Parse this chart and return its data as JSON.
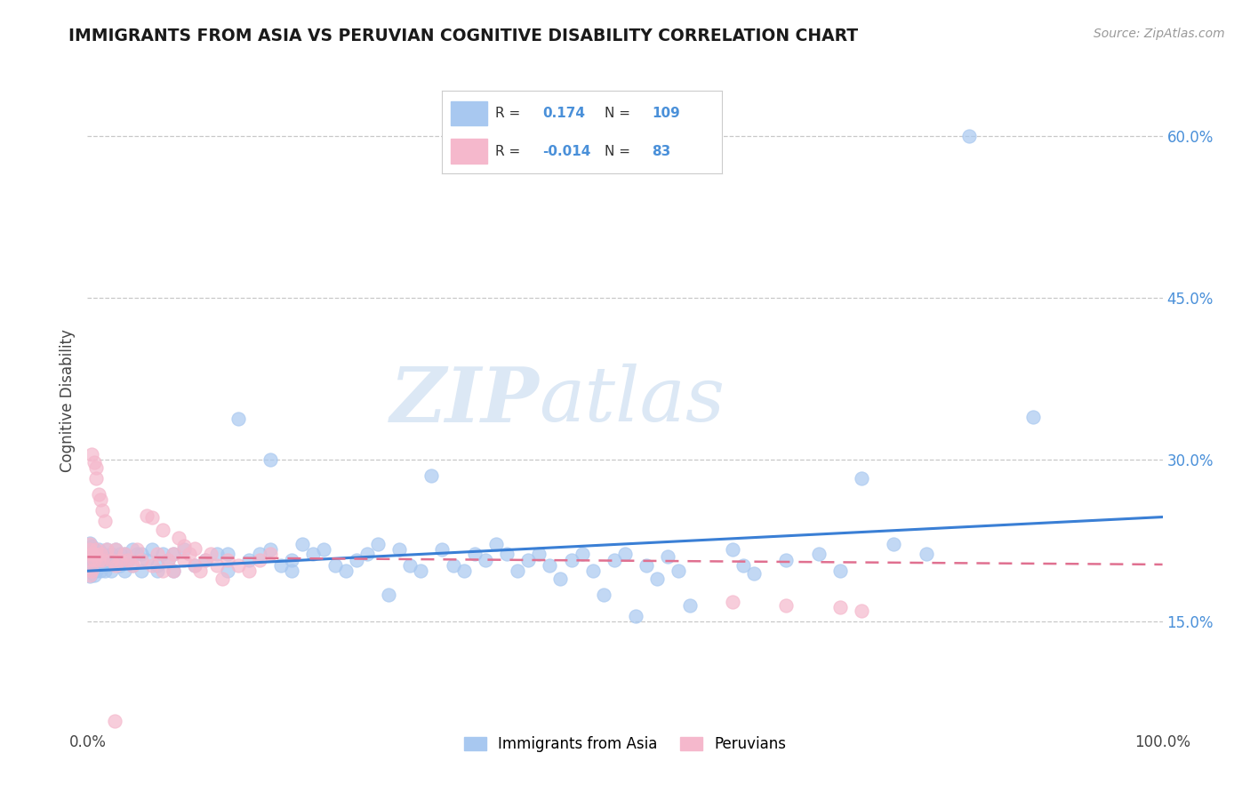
{
  "title": "IMMIGRANTS FROM ASIA VS PERUVIAN COGNITIVE DISABILITY CORRELATION CHART",
  "source": "Source: ZipAtlas.com",
  "ylabel": "Cognitive Disability",
  "y_tick_labels": [
    "15.0%",
    "30.0%",
    "45.0%",
    "60.0%"
  ],
  "y_tick_values": [
    0.15,
    0.3,
    0.45,
    0.6
  ],
  "x_range": [
    0.0,
    1.0
  ],
  "y_range": [
    0.05,
    0.66
  ],
  "color_blue": "#a8c8f0",
  "color_pink": "#f5b8cc",
  "line_blue": "#3a7fd5",
  "line_pink": "#e07090",
  "watermark_zip": "ZIP",
  "watermark_atlas": "atlas",
  "blue_scatter": [
    [
      0.002,
      0.205
    ],
    [
      0.002,
      0.218
    ],
    [
      0.002,
      0.223
    ],
    [
      0.002,
      0.192
    ],
    [
      0.002,
      0.21
    ],
    [
      0.004,
      0.213
    ],
    [
      0.004,
      0.197
    ],
    [
      0.004,
      0.207
    ],
    [
      0.004,
      0.22
    ],
    [
      0.006,
      0.217
    ],
    [
      0.006,
      0.193
    ],
    [
      0.006,
      0.207
    ],
    [
      0.006,
      0.212
    ],
    [
      0.008,
      0.202
    ],
    [
      0.008,
      0.212
    ],
    [
      0.008,
      0.197
    ],
    [
      0.01,
      0.207
    ],
    [
      0.01,
      0.217
    ],
    [
      0.01,
      0.202
    ],
    [
      0.012,
      0.213
    ],
    [
      0.012,
      0.197
    ],
    [
      0.012,
      0.207
    ],
    [
      0.014,
      0.213
    ],
    [
      0.014,
      0.202
    ],
    [
      0.016,
      0.197
    ],
    [
      0.016,
      0.207
    ],
    [
      0.018,
      0.217
    ],
    [
      0.018,
      0.202
    ],
    [
      0.022,
      0.213
    ],
    [
      0.022,
      0.197
    ],
    [
      0.026,
      0.207
    ],
    [
      0.026,
      0.217
    ],
    [
      0.03,
      0.202
    ],
    [
      0.03,
      0.213
    ],
    [
      0.034,
      0.197
    ],
    [
      0.034,
      0.213
    ],
    [
      0.038,
      0.207
    ],
    [
      0.042,
      0.217
    ],
    [
      0.042,
      0.202
    ],
    [
      0.046,
      0.213
    ],
    [
      0.05,
      0.197
    ],
    [
      0.05,
      0.213
    ],
    [
      0.055,
      0.207
    ],
    [
      0.06,
      0.217
    ],
    [
      0.065,
      0.202
    ],
    [
      0.065,
      0.197
    ],
    [
      0.07,
      0.213
    ],
    [
      0.075,
      0.207
    ],
    [
      0.08,
      0.213
    ],
    [
      0.08,
      0.197
    ],
    [
      0.09,
      0.217
    ],
    [
      0.1,
      0.202
    ],
    [
      0.11,
      0.207
    ],
    [
      0.12,
      0.213
    ],
    [
      0.13,
      0.197
    ],
    [
      0.13,
      0.213
    ],
    [
      0.14,
      0.338
    ],
    [
      0.15,
      0.207
    ],
    [
      0.16,
      0.213
    ],
    [
      0.17,
      0.3
    ],
    [
      0.17,
      0.217
    ],
    [
      0.18,
      0.202
    ],
    [
      0.19,
      0.207
    ],
    [
      0.19,
      0.197
    ],
    [
      0.2,
      0.222
    ],
    [
      0.21,
      0.213
    ],
    [
      0.22,
      0.217
    ],
    [
      0.23,
      0.202
    ],
    [
      0.24,
      0.197
    ],
    [
      0.25,
      0.207
    ],
    [
      0.26,
      0.213
    ],
    [
      0.27,
      0.222
    ],
    [
      0.28,
      0.175
    ],
    [
      0.29,
      0.217
    ],
    [
      0.3,
      0.202
    ],
    [
      0.31,
      0.197
    ],
    [
      0.32,
      0.285
    ],
    [
      0.33,
      0.217
    ],
    [
      0.34,
      0.202
    ],
    [
      0.35,
      0.197
    ],
    [
      0.36,
      0.213
    ],
    [
      0.37,
      0.207
    ],
    [
      0.38,
      0.222
    ],
    [
      0.39,
      0.213
    ],
    [
      0.4,
      0.197
    ],
    [
      0.41,
      0.207
    ],
    [
      0.42,
      0.213
    ],
    [
      0.43,
      0.202
    ],
    [
      0.44,
      0.19
    ],
    [
      0.45,
      0.207
    ],
    [
      0.46,
      0.213
    ],
    [
      0.47,
      0.197
    ],
    [
      0.48,
      0.175
    ],
    [
      0.49,
      0.207
    ],
    [
      0.5,
      0.213
    ],
    [
      0.51,
      0.155
    ],
    [
      0.52,
      0.202
    ],
    [
      0.53,
      0.19
    ],
    [
      0.54,
      0.21
    ],
    [
      0.55,
      0.197
    ],
    [
      0.56,
      0.165
    ],
    [
      0.6,
      0.217
    ],
    [
      0.61,
      0.202
    ],
    [
      0.62,
      0.195
    ],
    [
      0.65,
      0.207
    ],
    [
      0.68,
      0.213
    ],
    [
      0.7,
      0.197
    ],
    [
      0.72,
      0.283
    ],
    [
      0.75,
      0.222
    ],
    [
      0.78,
      0.213
    ],
    [
      0.82,
      0.6
    ],
    [
      0.88,
      0.34
    ]
  ],
  "pink_scatter": [
    [
      0.002,
      0.217
    ],
    [
      0.002,
      0.222
    ],
    [
      0.002,
      0.207
    ],
    [
      0.002,
      0.193
    ],
    [
      0.004,
      0.305
    ],
    [
      0.004,
      0.213
    ],
    [
      0.004,
      0.197
    ],
    [
      0.006,
      0.298
    ],
    [
      0.006,
      0.213
    ],
    [
      0.006,
      0.207
    ],
    [
      0.008,
      0.293
    ],
    [
      0.008,
      0.283
    ],
    [
      0.008,
      0.217
    ],
    [
      0.01,
      0.268
    ],
    [
      0.01,
      0.207
    ],
    [
      0.012,
      0.263
    ],
    [
      0.012,
      0.213
    ],
    [
      0.014,
      0.253
    ],
    [
      0.014,
      0.207
    ],
    [
      0.016,
      0.243
    ],
    [
      0.018,
      0.217
    ],
    [
      0.022,
      0.207
    ],
    [
      0.026,
      0.202
    ],
    [
      0.026,
      0.217
    ],
    [
      0.03,
      0.207
    ],
    [
      0.034,
      0.213
    ],
    [
      0.038,
      0.207
    ],
    [
      0.042,
      0.202
    ],
    [
      0.046,
      0.217
    ],
    [
      0.05,
      0.207
    ],
    [
      0.055,
      0.248
    ],
    [
      0.06,
      0.202
    ],
    [
      0.06,
      0.247
    ],
    [
      0.065,
      0.213
    ],
    [
      0.07,
      0.197
    ],
    [
      0.07,
      0.235
    ],
    [
      0.075,
      0.207
    ],
    [
      0.08,
      0.213
    ],
    [
      0.08,
      0.197
    ],
    [
      0.085,
      0.228
    ],
    [
      0.09,
      0.207
    ],
    [
      0.09,
      0.22
    ],
    [
      0.095,
      0.213
    ],
    [
      0.1,
      0.202
    ],
    [
      0.1,
      0.218
    ],
    [
      0.105,
      0.197
    ],
    [
      0.11,
      0.207
    ],
    [
      0.115,
      0.213
    ],
    [
      0.12,
      0.202
    ],
    [
      0.125,
      0.19
    ],
    [
      0.13,
      0.207
    ],
    [
      0.14,
      0.202
    ],
    [
      0.15,
      0.197
    ],
    [
      0.16,
      0.207
    ],
    [
      0.17,
      0.213
    ],
    [
      0.025,
      0.058
    ],
    [
      0.6,
      0.168
    ],
    [
      0.65,
      0.165
    ],
    [
      0.7,
      0.163
    ],
    [
      0.72,
      0.16
    ]
  ],
  "blue_trendline_x": [
    0.0,
    1.0
  ],
  "blue_trendline_y": [
    0.197,
    0.247
  ],
  "pink_trendline_x": [
    0.0,
    1.0
  ],
  "pink_trendline_y": [
    0.21,
    0.203
  ]
}
